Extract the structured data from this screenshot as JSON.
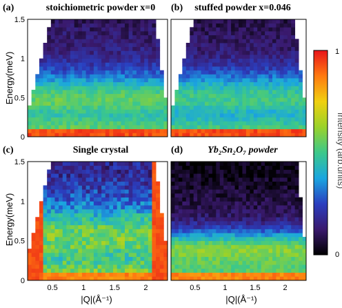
{
  "chart_data": [
    {
      "type": "heatmap",
      "panel_label": "(a)",
      "title": "stoichiometric powder x=0",
      "ylabel": "Energy(meV)",
      "xlabel": "",
      "xlim": [
        0.1,
        2.35
      ],
      "ylim": [
        0,
        1.5
      ],
      "y_ticks": [
        "0",
        "0.5",
        "1",
        "1.5"
      ],
      "x_ticks": [],
      "elastic_intensity": 0.97,
      "band_center_meV": 0.48,
      "band_width_meV": 0.32,
      "band_peak_intensity": 0.55,
      "background_intensity": 0.22
    },
    {
      "type": "heatmap",
      "panel_label": "(b)",
      "title": "stuffed powder x=0.046",
      "ylabel": "",
      "xlabel": "",
      "xlim": [
        0.1,
        2.35
      ],
      "ylim": [
        0,
        1.5
      ],
      "y_ticks": [],
      "x_ticks": [],
      "elastic_intensity": 0.97,
      "band_center_meV": 0.5,
      "band_width_meV": 0.32,
      "band_peak_intensity": 0.5,
      "background_intensity": 0.2
    },
    {
      "type": "heatmap",
      "panel_label": "(c)",
      "title": "Single crystal",
      "ylabel": "Energy(meV)",
      "xlabel": "|Q|(Å⁻¹)",
      "xlim": [
        0.1,
        2.35
      ],
      "ylim": [
        0,
        1.5
      ],
      "y_ticks": [
        "0",
        "0.5",
        "1",
        "1.5"
      ],
      "x_ticks": [
        "0.5",
        "1",
        "1.5",
        "2"
      ],
      "elastic_intensity": 0.9,
      "band_center_meV": 0.55,
      "band_width_meV": 0.38,
      "band_peak_intensity": 0.58,
      "background_intensity": 0.28
    },
    {
      "type": "heatmap",
      "panel_label": "(d)",
      "title": "Yb₂Sn₂O₇ powder",
      "ylabel": "",
      "xlabel": "|Q|(Å⁻¹)",
      "xlim": [
        0.1,
        2.35
      ],
      "ylim": [
        0,
        1.5
      ],
      "y_ticks": [],
      "x_ticks": [
        "0.5",
        "1",
        "1.5",
        "2"
      ],
      "elastic_intensity": 0.9,
      "band_center_meV": 0.38,
      "band_width_meV": 0.25,
      "band_peak_intensity": 0.6,
      "background_intensity": 0.15
    }
  ],
  "colorbar": {
    "label": "Intensity (arb.units)",
    "max_label": "1",
    "min_label": "0",
    "colors": [
      "#000000",
      "#3a1a6e",
      "#2a3fc0",
      "#1aa6e0",
      "#3cc88a",
      "#9ad22a",
      "#f0d010",
      "#ff7a10",
      "#e8141a"
    ]
  }
}
